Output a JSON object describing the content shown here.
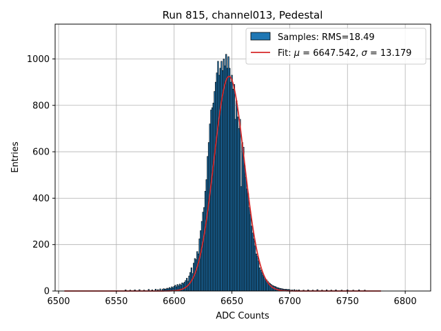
{
  "chart_data": {
    "type": "bar",
    "title": "Run 815, channel013, Pedestal",
    "xlabel": "ADC Counts",
    "ylabel": "Entries",
    "xlim": [
      6497,
      6822
    ],
    "ylim": [
      0,
      1150
    ],
    "xticks": [
      6500,
      6550,
      6600,
      6650,
      6700,
      6750,
      6800
    ],
    "yticks": [
      0,
      200,
      400,
      600,
      800,
      1000
    ],
    "grid": true,
    "legend_position": "top-right",
    "series": [
      {
        "name": "Samples: RMS=18.49",
        "kind": "histogram",
        "color": "#1f77b4",
        "edge_color": "#000000",
        "bin_width": 1,
        "bins": [
          [
            6558,
            5
          ],
          [
            6562,
            4
          ],
          [
            6566,
            5
          ],
          [
            6570,
            6
          ],
          [
            6574,
            4
          ],
          [
            6578,
            7
          ],
          [
            6581,
            5
          ],
          [
            6584,
            8
          ],
          [
            6586,
            6
          ],
          [
            6588,
            9
          ],
          [
            6590,
            7
          ],
          [
            6591,
            10
          ],
          [
            6592,
            8
          ],
          [
            6593,
            9
          ],
          [
            6594,
            12
          ],
          [
            6595,
            10
          ],
          [
            6596,
            15
          ],
          [
            6597,
            11
          ],
          [
            6598,
            18
          ],
          [
            6599,
            14
          ],
          [
            6600,
            20
          ],
          [
            6601,
            25
          ],
          [
            6602,
            18
          ],
          [
            6603,
            28
          ],
          [
            6604,
            22
          ],
          [
            6605,
            30
          ],
          [
            6606,
            25
          ],
          [
            6607,
            35
          ],
          [
            6608,
            32
          ],
          [
            6609,
            38
          ],
          [
            6610,
            45
          ],
          [
            6611,
            55
          ],
          [
            6612,
            42
          ],
          [
            6613,
            65
          ],
          [
            6614,
            80
          ],
          [
            6615,
            100
          ],
          [
            6616,
            75
          ],
          [
            6617,
            120
          ],
          [
            6618,
            140
          ],
          [
            6619,
            135
          ],
          [
            6620,
            170
          ],
          [
            6621,
            160
          ],
          [
            6622,
            225
          ],
          [
            6623,
            260
          ],
          [
            6624,
            300
          ],
          [
            6625,
            340
          ],
          [
            6626,
            360
          ],
          [
            6627,
            430
          ],
          [
            6628,
            480
          ],
          [
            6629,
            580
          ],
          [
            6630,
            640
          ],
          [
            6631,
            720
          ],
          [
            6632,
            780
          ],
          [
            6633,
            790
          ],
          [
            6634,
            810
          ],
          [
            6635,
            860
          ],
          [
            6636,
            900
          ],
          [
            6637,
            940
          ],
          [
            6638,
            990
          ],
          [
            6639,
            930
          ],
          [
            6640,
            960
          ],
          [
            6641,
            990
          ],
          [
            6642,
            950
          ],
          [
            6643,
            1000
          ],
          [
            6644,
            970
          ],
          [
            6645,
            1020
          ],
          [
            6646,
            960
          ],
          [
            6647,
            1010
          ],
          [
            6648,
            960
          ],
          [
            6649,
            900
          ],
          [
            6650,
            930
          ],
          [
            6651,
            870
          ],
          [
            6652,
            890
          ],
          [
            6653,
            740
          ],
          [
            6654,
            820
          ],
          [
            6655,
            750
          ],
          [
            6656,
            700
          ],
          [
            6657,
            740
          ],
          [
            6658,
            450
          ],
          [
            6659,
            640
          ],
          [
            6660,
            620
          ],
          [
            6661,
            540
          ],
          [
            6662,
            490
          ],
          [
            6663,
            440
          ],
          [
            6664,
            420
          ],
          [
            6665,
            360
          ],
          [
            6666,
            330
          ],
          [
            6667,
            280
          ],
          [
            6668,
            250
          ],
          [
            6669,
            225
          ],
          [
            6670,
            195
          ],
          [
            6671,
            160
          ],
          [
            6672,
            150
          ],
          [
            6673,
            130
          ],
          [
            6674,
            100
          ],
          [
            6675,
            90
          ],
          [
            6676,
            80
          ],
          [
            6677,
            68
          ],
          [
            6678,
            60
          ],
          [
            6679,
            52
          ],
          [
            6680,
            48
          ],
          [
            6681,
            42
          ],
          [
            6682,
            36
          ],
          [
            6683,
            32
          ],
          [
            6684,
            28
          ],
          [
            6685,
            24
          ],
          [
            6686,
            22
          ],
          [
            6687,
            20
          ],
          [
            6688,
            18
          ],
          [
            6689,
            15
          ],
          [
            6690,
            14
          ],
          [
            6691,
            12
          ],
          [
            6692,
            11
          ],
          [
            6693,
            10
          ],
          [
            6694,
            9
          ],
          [
            6695,
            8
          ],
          [
            6696,
            7
          ],
          [
            6697,
            8
          ],
          [
            6698,
            6
          ],
          [
            6699,
            7
          ],
          [
            6700,
            6
          ],
          [
            6702,
            5
          ],
          [
            6704,
            6
          ],
          [
            6706,
            4
          ],
          [
            6708,
            5
          ],
          [
            6712,
            4
          ],
          [
            6716,
            5
          ],
          [
            6720,
            4
          ],
          [
            6724,
            6
          ],
          [
            6728,
            4
          ],
          [
            6732,
            5
          ],
          [
            6736,
            4
          ],
          [
            6740,
            5
          ],
          [
            6745,
            4
          ],
          [
            6750,
            5
          ],
          [
            6755,
            4
          ],
          [
            6760,
            5
          ],
          [
            6765,
            4
          ]
        ]
      },
      {
        "name": "Fit: μ = 6647.542, σ = 13.179",
        "kind": "gaussian_fit",
        "color": "#d62728",
        "mu": 6647.542,
        "sigma": 13.179,
        "amplitude": 925,
        "x_range": [
          6505,
          6779
        ]
      }
    ]
  }
}
